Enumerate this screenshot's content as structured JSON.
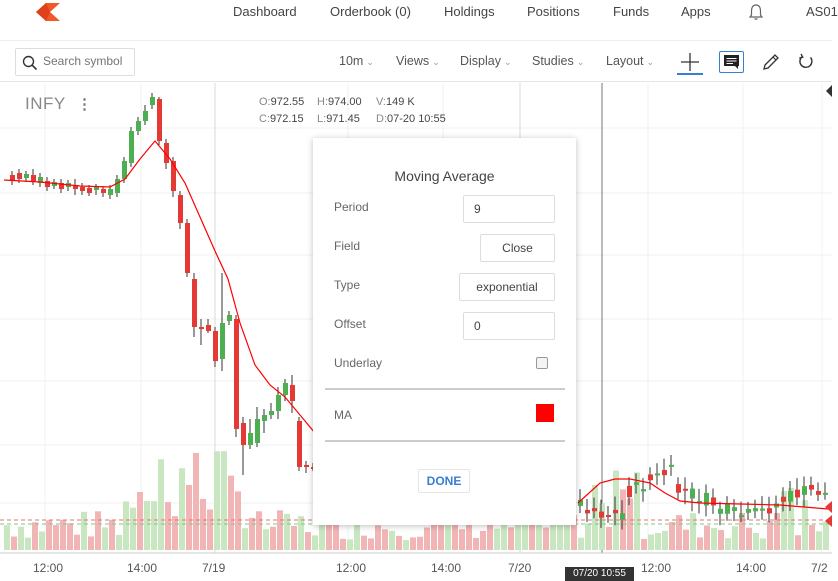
{
  "nav": {
    "items": [
      "Dashboard",
      "Orderbook (0)",
      "Holdings",
      "Positions",
      "Funds",
      "Apps"
    ],
    "user": "AS01"
  },
  "toolbar": {
    "search_placeholder": "Search symbol",
    "interval": "10m",
    "views": "Views",
    "display": "Display",
    "studies": "Studies",
    "layout": "Layout"
  },
  "chart": {
    "symbol": "INFY",
    "ohlc": {
      "open_label": "O:",
      "open": "972.55",
      "high_label": "H:",
      "high": "974.00",
      "volume_label": "V:",
      "volume": "149 K",
      "close_label": "C:",
      "close": "972.15",
      "low_label": "L:",
      "low": "971.45",
      "date_label": "D:",
      "date": "07-20 10:55"
    },
    "x_labels": [
      "12:00",
      "14:00",
      "7/19",
      "12:00",
      "14:00",
      "7/20",
      "12:00",
      "14:00",
      "7/2"
    ],
    "cursor_time": "07/20 10:55",
    "colors": {
      "up": "#4caf50",
      "down": "#e53935",
      "ma": "#ff0000",
      "vol_up": "#c8e6c0",
      "vol_down": "#f1b5b5"
    }
  },
  "dialog": {
    "title": "Moving Average",
    "period_label": "Period",
    "period_value": "9",
    "field_label": "Field",
    "field_value": "Close",
    "type_label": "Type",
    "type_value": "exponential",
    "offset_label": "Offset",
    "offset_value": "0",
    "underlay_label": "Underlay",
    "ma_label": "MA",
    "ma_color": "#ff0000",
    "done_label": "DONE"
  }
}
